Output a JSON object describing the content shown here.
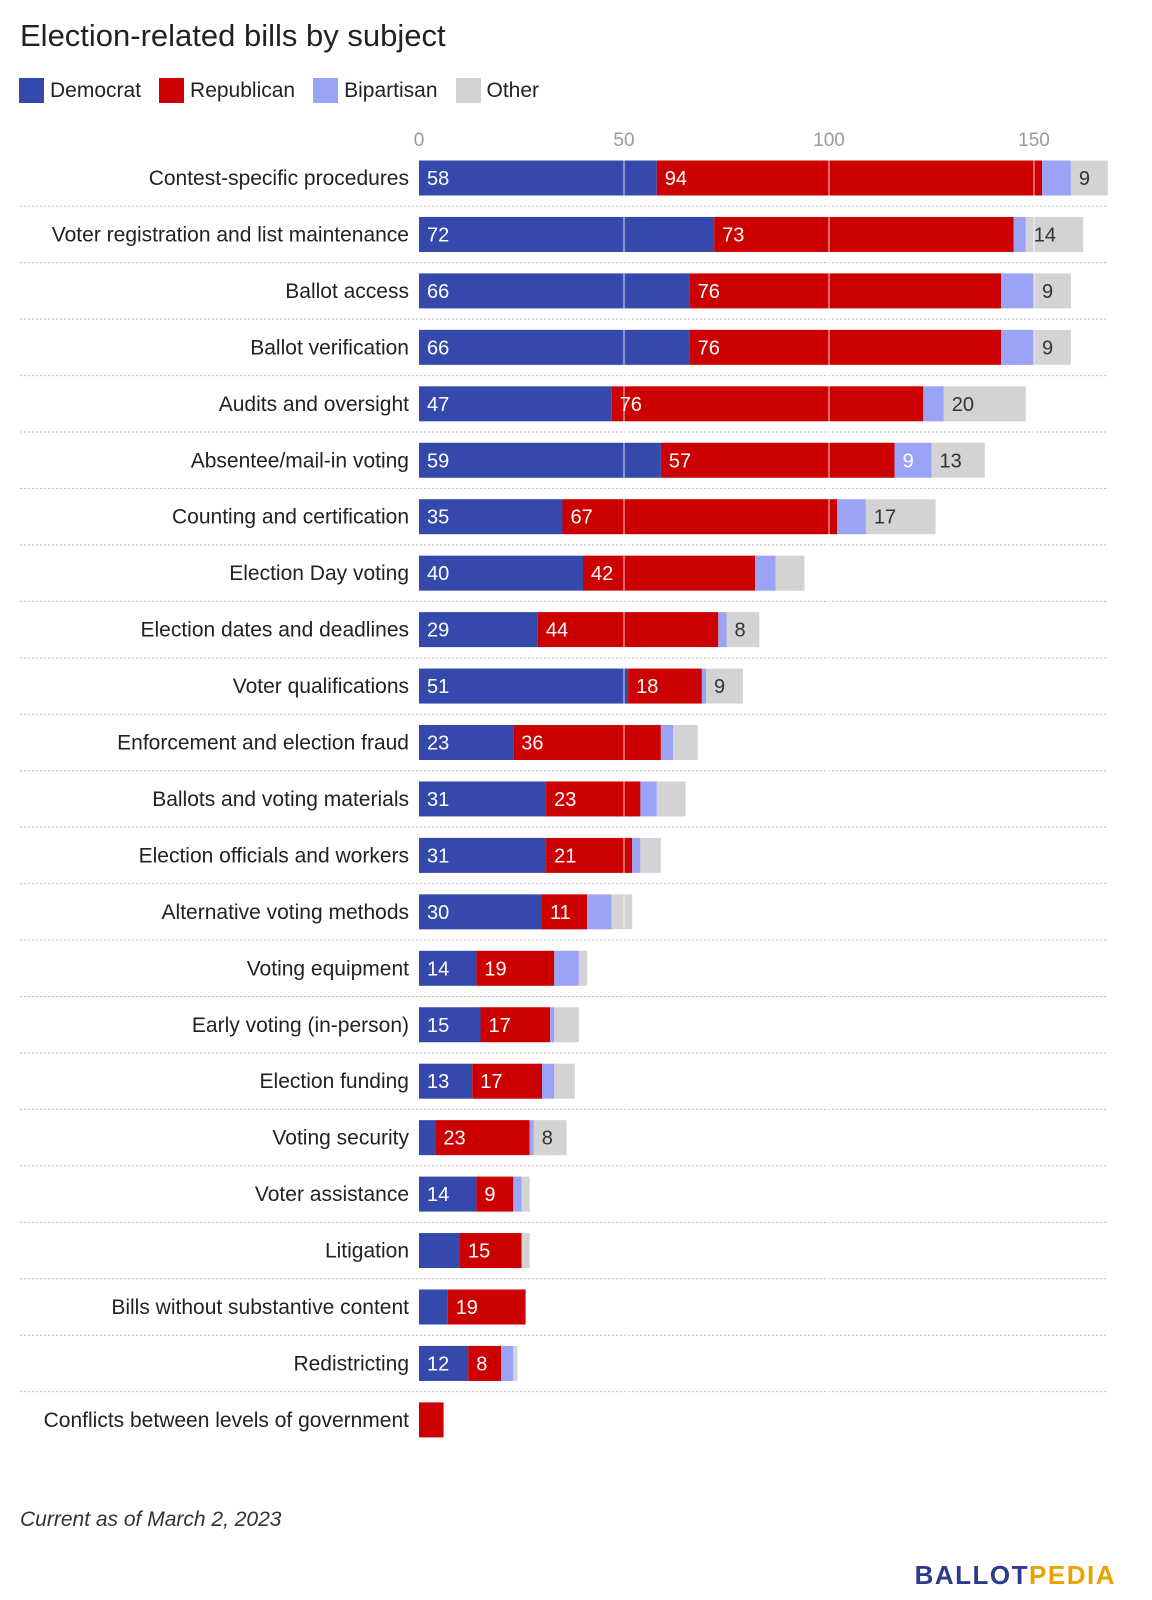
{
  "title": "Election-related bills by subject",
  "footnote": "Current as of March 2, 2023",
  "brand": {
    "part1": "BALLOT",
    "part2": "PEDIA"
  },
  "colors": {
    "Democrat": "#3549ad",
    "Republican": "#cc0000",
    "Bipartisan": "#9aa3f5",
    "Other": "#d3d3d3"
  },
  "chart_data": {
    "type": "bar",
    "orientation": "horizontal",
    "stacked": true,
    "title": "Election-related bills by subject",
    "xlim": [
      0,
      168
    ],
    "x_ticks": [
      0,
      50,
      100,
      150
    ],
    "grid": true,
    "legend": "top-left",
    "categories": [
      "Contest-specific procedures",
      "Voter registration and list maintenance",
      "Ballot access",
      "Ballot verification",
      "Audits and oversight",
      "Absentee/mail-in voting",
      "Counting and certification",
      "Election Day voting",
      "Election dates and deadlines",
      "Voter qualifications",
      "Enforcement and election fraud",
      "Ballots and voting materials",
      "Election officials and workers",
      "Alternative voting methods",
      "Voting equipment",
      "Early voting (in-person)",
      "Election funding",
      "Voting security",
      "Voter assistance",
      "Litigation",
      "Bills without substantive content",
      "Redistricting",
      "Conflicts between levels of government"
    ],
    "series": [
      {
        "name": "Democrat",
        "values": [
          58,
          72,
          66,
          66,
          47,
          59,
          35,
          40,
          29,
          51,
          23,
          31,
          31,
          30,
          14,
          15,
          13,
          4,
          14,
          10,
          7,
          12,
          0
        ],
        "labels": [
          "58",
          "72",
          "66",
          "66",
          "47",
          "59",
          "35",
          "40",
          "29",
          "51",
          "23",
          "31",
          "31",
          "30",
          "14",
          "15",
          "13",
          "",
          "14",
          "",
          "",
          "12",
          ""
        ]
      },
      {
        "name": "Republican",
        "values": [
          94,
          73,
          76,
          76,
          76,
          57,
          67,
          42,
          44,
          18,
          36,
          23,
          21,
          11,
          19,
          17,
          17,
          23,
          9,
          15,
          19,
          8,
          6
        ],
        "labels": [
          "94",
          "73",
          "76",
          "76",
          "76",
          "57",
          "67",
          "42",
          "44",
          "18",
          "36",
          "23",
          "21",
          "11",
          "19",
          "17",
          "17",
          "23",
          "9",
          "15",
          "19",
          "8",
          ""
        ]
      },
      {
        "name": "Bipartisan",
        "values": [
          7,
          3,
          8,
          8,
          5,
          9,
          7,
          5,
          2,
          1,
          3,
          4,
          2,
          6,
          6,
          1,
          3,
          1,
          2,
          0,
          0,
          3,
          0
        ],
        "labels": [
          "",
          "",
          "",
          "",
          "",
          "9",
          "",
          "",
          "",
          "",
          "",
          "",
          "",
          "",
          "",
          "",
          "",
          "",
          "",
          "",
          "",
          "",
          ""
        ]
      },
      {
        "name": "Other",
        "values": [
          9,
          14,
          9,
          9,
          20,
          13,
          17,
          7,
          8,
          9,
          6,
          7,
          5,
          5,
          2,
          6,
          5,
          8,
          2,
          2,
          0,
          1,
          0
        ],
        "labels": [
          "9",
          "14",
          "9",
          "9",
          "20",
          "13",
          "17",
          "",
          "8",
          "9",
          "",
          "",
          "",
          "",
          "",
          "",
          "",
          "8",
          "",
          "",
          "",
          "",
          ""
        ]
      }
    ]
  }
}
